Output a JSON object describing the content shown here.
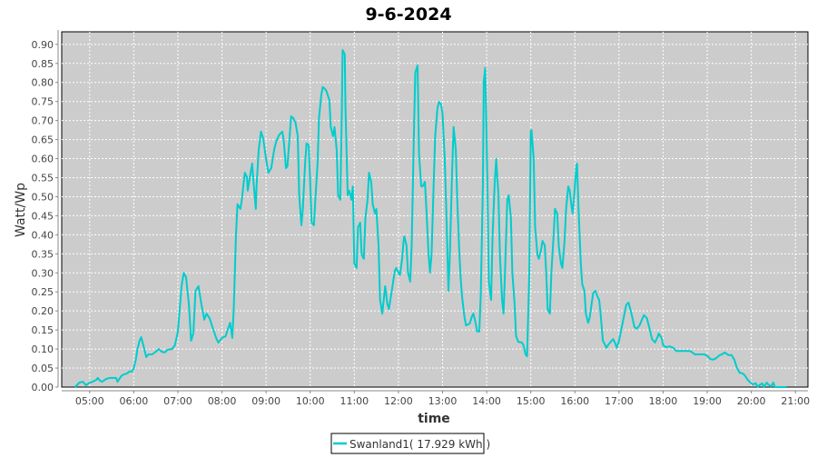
{
  "chart_data": {
    "type": "line",
    "title": "9-6-2024",
    "xlabel": "time",
    "ylabel": "Watt/Wp",
    "xlim": [
      "04:22",
      "21:17"
    ],
    "ylim": [
      0,
      0.933
    ],
    "x_ticks": [
      "05:00",
      "06:00",
      "07:00",
      "08:00",
      "09:00",
      "10:00",
      "11:00",
      "12:00",
      "13:00",
      "14:00",
      "15:00",
      "16:00",
      "17:00",
      "18:00",
      "19:00",
      "20:00",
      "21:00"
    ],
    "y_ticks": [
      "0.00",
      "0.05",
      "0.10",
      "0.15",
      "0.20",
      "0.25",
      "0.30",
      "0.35",
      "0.40",
      "0.45",
      "0.50",
      "0.55",
      "0.60",
      "0.65",
      "0.70",
      "0.75",
      "0.80",
      "0.85",
      "0.90"
    ],
    "grid": true,
    "legend_position": "bottom",
    "colors": {
      "series": "#00cccc",
      "plot_background": "#cccccc",
      "grid": "#ffffff"
    },
    "series": [
      {
        "name": "Swanland1( 17.929 kWh )",
        "x": [
          "04:40",
          "04:46",
          "04:51",
          "04:55",
          "05:00",
          "05:04",
          "05:09",
          "05:11",
          "05:14",
          "05:17",
          "05:22",
          "05:27",
          "05:36",
          "05:38",
          "05:43",
          "05:46",
          "05:51",
          "05:54",
          "05:58",
          "06:00",
          "06:03",
          "06:05",
          "06:08",
          "06:10",
          "06:13",
          "06:17",
          "06:20",
          "06:25",
          "06:30",
          "06:34",
          "06:38",
          "06:42",
          "06:46",
          "06:52",
          "06:56",
          "07:00",
          "07:02",
          "07:05",
          "07:08",
          "07:11",
          "07:15",
          "07:18",
          "07:21",
          "07:24",
          "07:28",
          "07:32",
          "07:36",
          "07:39",
          "07:43",
          "07:47",
          "07:52",
          "07:55",
          "08:00",
          "08:05",
          "08:09",
          "08:11",
          "08:14",
          "08:16",
          "08:19",
          "08:21",
          "08:25",
          "08:27",
          "08:31",
          "08:34",
          "08:35",
          "08:39",
          "08:41",
          "08:43",
          "08:46",
          "08:47",
          "08:50",
          "08:53",
          "08:56",
          "09:00",
          "09:03",
          "09:07",
          "09:11",
          "09:14",
          "09:18",
          "09:22",
          "09:24",
          "09:27",
          "09:29",
          "09:32",
          "09:34",
          "09:37",
          "09:40",
          "09:43",
          "09:45",
          "09:48",
          "09:50",
          "09:53",
          "09:55",
          "09:58",
          "10:00",
          "10:02",
          "10:05",
          "10:07",
          "10:10",
          "10:12",
          "10:15",
          "10:17",
          "10:20",
          "10:22",
          "10:26",
          "10:28",
          "10:31",
          "10:33",
          "10:36",
          "10:38",
          "10:41",
          "10:43",
          "10:44",
          "10:47",
          "10:48",
          "10:51",
          "10:53",
          "10:56",
          "10:58",
          "11:00",
          "11:03",
          "11:05",
          "11:08",
          "11:10",
          "11:13",
          "11:15",
          "11:18",
          "11:20",
          "11:23",
          "11:25",
          "11:28",
          "11:30",
          "11:33",
          "11:35",
          "11:38",
          "11:40",
          "11:42",
          "11:45",
          "11:47",
          "11:50",
          "11:52",
          "11:55",
          "11:57",
          "12:00",
          "12:02",
          "12:05",
          "12:07",
          "12:08",
          "12:11",
          "12:13",
          "12:16",
          "12:18",
          "12:21",
          "12:23",
          "12:26",
          "12:28",
          "12:31",
          "12:33",
          "12:36",
          "12:38",
          "12:41",
          "12:43",
          "12:45",
          "12:48",
          "12:50",
          "12:53",
          "12:55",
          "12:58",
          "13:00",
          "13:03",
          "13:05",
          "13:08",
          "13:10",
          "13:13",
          "13:15",
          "13:18",
          "13:20",
          "13:23",
          "13:25",
          "13:27",
          "13:30",
          "13:32",
          "13:37",
          "13:40",
          "13:42",
          "13:45",
          "13:47",
          "13:50",
          "13:52",
          "13:55",
          "13:56",
          "13:58",
          "14:01",
          "14:03",
          "14:06",
          "14:08",
          "14:11",
          "14:13",
          "14:16",
          "14:18",
          "14:21",
          "14:23",
          "14:25",
          "14:28",
          "14:30",
          "14:33",
          "14:35",
          "14:38",
          "14:40",
          "14:43",
          "14:48",
          "14:50",
          "14:53",
          "14:55",
          "14:58",
          "15:00",
          "15:01",
          "15:04",
          "15:06",
          "15:09",
          "15:11",
          "15:14",
          "15:16",
          "15:19",
          "15:21",
          "15:23",
          "15:26",
          "15:28",
          "15:31",
          "15:33",
          "15:36",
          "15:38",
          "15:41",
          "15:43",
          "15:46",
          "15:48",
          "15:51",
          "15:53",
          "15:56",
          "15:57",
          "15:59",
          "16:02",
          "16:03",
          "16:05",
          "16:08",
          "16:10",
          "16:13",
          "16:15",
          "16:18",
          "16:20",
          "16:23",
          "16:25",
          "16:28",
          "16:30",
          "16:33",
          "16:35",
          "16:38",
          "16:40",
          "16:43",
          "16:45",
          "16:50",
          "16:52",
          "16:55",
          "16:57",
          "17:00",
          "17:05",
          "17:10",
          "17:13",
          "17:17",
          "17:21",
          "17:24",
          "17:28",
          "17:32",
          "17:34",
          "17:38",
          "17:42",
          "17:45",
          "17:49",
          "17:53",
          "17:54",
          "17:58",
          "18:00",
          "18:04",
          "18:09",
          "18:14",
          "18:18",
          "18:25",
          "18:36",
          "18:40",
          "18:43",
          "18:56",
          "19:01",
          "19:04",
          "19:08",
          "19:12",
          "19:17",
          "19:20",
          "19:24",
          "19:29",
          "19:33",
          "19:37",
          "19:40",
          "19:44",
          "19:48",
          "19:51",
          "19:55",
          "19:59",
          "20:02",
          "20:06",
          "20:09",
          "20:11",
          "20:15",
          "20:17",
          "20:21",
          "20:23",
          "20:27",
          "20:30",
          "20:32",
          "20:48"
        ],
        "y": [
          0.0,
          0.012,
          0.014,
          0.005,
          0.012,
          0.014,
          0.019,
          0.024,
          0.017,
          0.014,
          0.021,
          0.024,
          0.024,
          0.014,
          0.029,
          0.033,
          0.036,
          0.041,
          0.041,
          0.05,
          0.074,
          0.1,
          0.122,
          0.131,
          0.11,
          0.079,
          0.086,
          0.086,
          0.093,
          0.1,
          0.093,
          0.091,
          0.098,
          0.1,
          0.11,
          0.146,
          0.193,
          0.265,
          0.3,
          0.289,
          0.217,
          0.122,
          0.141,
          0.253,
          0.265,
          0.217,
          0.177,
          0.193,
          0.181,
          0.158,
          0.129,
          0.117,
          0.129,
          0.134,
          0.158,
          0.169,
          0.129,
          0.205,
          0.396,
          0.48,
          0.468,
          0.492,
          0.563,
          0.551,
          0.516,
          0.563,
          0.587,
          0.535,
          0.468,
          0.527,
          0.623,
          0.671,
          0.654,
          0.599,
          0.563,
          0.575,
          0.623,
          0.647,
          0.663,
          0.671,
          0.647,
          0.575,
          0.58,
          0.659,
          0.711,
          0.706,
          0.695,
          0.659,
          0.504,
          0.425,
          0.468,
          0.587,
          0.64,
          0.635,
          0.539,
          0.432,
          0.425,
          0.492,
          0.587,
          0.706,
          0.766,
          0.788,
          0.783,
          0.778,
          0.754,
          0.683,
          0.659,
          0.683,
          0.623,
          0.504,
          0.492,
          0.73,
          0.885,
          0.874,
          0.73,
          0.504,
          0.516,
          0.492,
          0.527,
          0.325,
          0.313,
          0.42,
          0.432,
          0.348,
          0.337,
          0.444,
          0.492,
          0.563,
          0.539,
          0.48,
          0.456,
          0.468,
          0.372,
          0.229,
          0.193,
          0.229,
          0.265,
          0.217,
          0.205,
          0.241,
          0.265,
          0.305,
          0.313,
          0.301,
          0.294,
          0.337,
          0.384,
          0.396,
          0.372,
          0.301,
          0.277,
          0.372,
          0.659,
          0.826,
          0.845,
          0.611,
          0.527,
          0.527,
          0.539,
          0.468,
          0.348,
          0.301,
          0.348,
          0.539,
          0.659,
          0.73,
          0.749,
          0.742,
          0.718,
          0.599,
          0.468,
          0.253,
          0.348,
          0.563,
          0.683,
          0.623,
          0.492,
          0.348,
          0.277,
          0.229,
          0.181,
          0.162,
          0.167,
          0.186,
          0.193,
          0.169,
          0.146,
          0.146,
          0.241,
          0.539,
          0.802,
          0.838,
          0.539,
          0.277,
          0.229,
          0.396,
          0.539,
          0.599,
          0.504,
          0.348,
          0.229,
          0.193,
          0.301,
          0.492,
          0.504,
          0.444,
          0.301,
          0.217,
          0.134,
          0.119,
          0.117,
          0.11,
          0.086,
          0.081,
          0.301,
          0.671,
          0.675,
          0.599,
          0.42,
          0.348,
          0.337,
          0.36,
          0.384,
          0.372,
          0.301,
          0.205,
          0.193,
          0.301,
          0.396,
          0.468,
          0.456,
          0.372,
          0.325,
          0.313,
          0.384,
          0.468,
          0.527,
          0.516,
          0.468,
          0.456,
          0.504,
          0.58,
          0.587,
          0.468,
          0.325,
          0.27,
          0.253,
          0.193,
          0.169,
          0.181,
          0.222,
          0.248,
          0.253,
          0.241,
          0.229,
          0.193,
          0.122,
          0.115,
          0.103,
          0.11,
          0.122,
          0.126,
          0.115,
          0.103,
          0.122,
          0.169,
          0.217,
          0.222,
          0.193,
          0.158,
          0.153,
          0.162,
          0.181,
          0.189,
          0.181,
          0.15,
          0.126,
          0.117,
          0.134,
          0.141,
          0.129,
          0.11,
          0.105,
          0.107,
          0.103,
          0.095,
          0.095,
          0.095,
          0.091,
          0.086,
          0.086,
          0.081,
          0.074,
          0.072,
          0.076,
          0.084,
          0.086,
          0.091,
          0.084,
          0.084,
          0.072,
          0.053,
          0.038,
          0.036,
          0.031,
          0.019,
          0.012,
          0.007,
          0.01,
          0.0,
          0.005,
          0.01,
          0.0,
          0.012,
          0.007,
          0.002,
          0.012,
          0.0,
          0.0
        ]
      }
    ]
  }
}
